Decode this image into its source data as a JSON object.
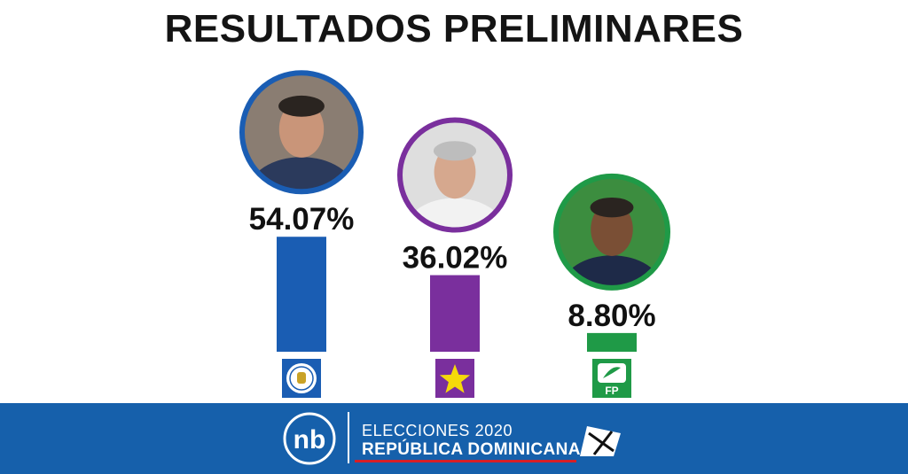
{
  "title": "RESULTADOS PRELIMINARES",
  "chart_data": {
    "type": "bar",
    "categories": [
      "PRM",
      "PLD",
      "FP"
    ],
    "values": [
      54.07,
      36.02,
      8.8
    ],
    "value_labels": [
      "54.07%",
      "36.02%",
      "8.80%"
    ],
    "bar_colors": [
      "#1a5db3",
      "#7a2f9d",
      "#1f9a47"
    ],
    "ring_colors": [
      "#1a5db3",
      "#7a2f9d",
      "#1f9a47"
    ],
    "party_icons": [
      "prm-party-logo-icon",
      "star-icon",
      "fp-party-logo-icon"
    ],
    "party_logo_text": "FP",
    "ylim": [
      0,
      100
    ],
    "grid": false,
    "legend": "none"
  },
  "footer": {
    "brand_icon": "nb-logo-icon",
    "brand_text": "nb",
    "line1": "ELECCIONES 2020",
    "line2": "REPÚBLICA DOMINICANA",
    "ballot_icon": "ballot-x-icon",
    "background": "#1660ab",
    "accent": "#d71f26"
  }
}
